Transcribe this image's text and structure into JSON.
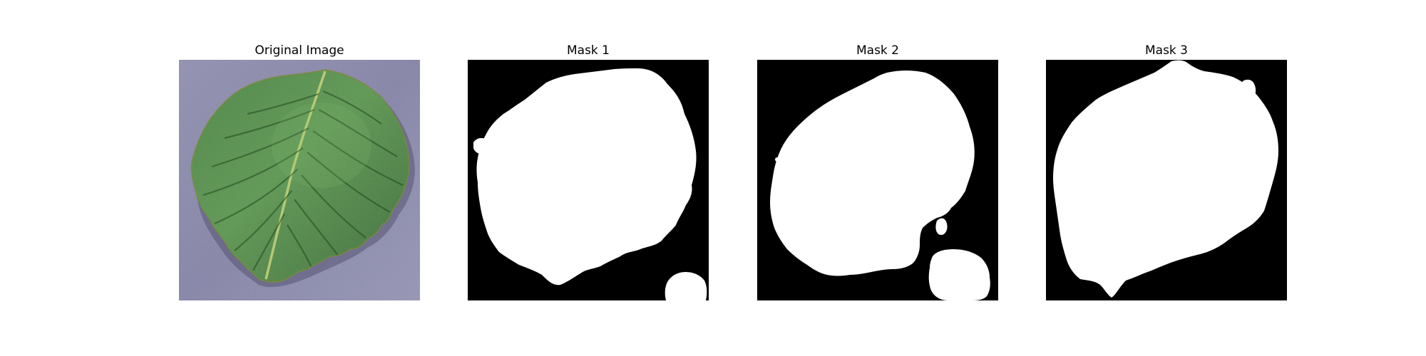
{
  "figure": {
    "panels": [
      {
        "title": "Original Image",
        "kind": "photo",
        "subject": "green-leaf-on-gray-fabric"
      },
      {
        "title": "Mask 1",
        "kind": "mask",
        "colors": {
          "foreground": "#ffffff",
          "background": "#000000"
        }
      },
      {
        "title": "Mask 2",
        "kind": "mask",
        "colors": {
          "foreground": "#ffffff",
          "background": "#000000"
        }
      },
      {
        "title": "Mask 3",
        "kind": "mask",
        "colors": {
          "foreground": "#ffffff",
          "background": "#000000"
        }
      }
    ]
  }
}
